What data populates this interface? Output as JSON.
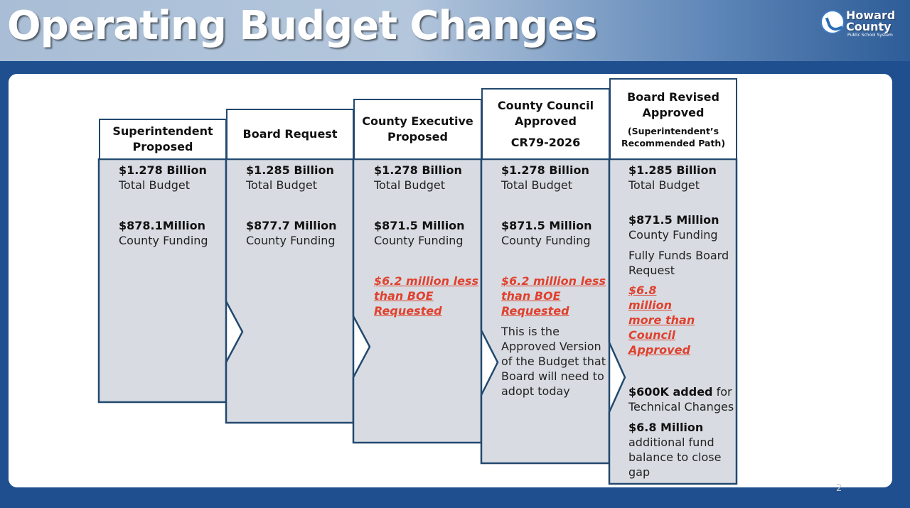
{
  "header": {
    "title": "Operating Budget Changes",
    "logo_line1": "Howard",
    "logo_line2": "County",
    "logo_line3": "Public School System"
  },
  "columns": [
    {
      "title": "Superintendent Proposed",
      "total": "$1.278 Billion",
      "total_label": "Total Budget",
      "county": "$878.1Million",
      "county_label": "County Funding"
    },
    {
      "title": "Board Request",
      "total": "$1.285 Billion",
      "total_label": "Total Budget",
      "county": "$877.7 Million",
      "county_label": "County Funding"
    },
    {
      "title": "County Executive Proposed",
      "total": "$1.278 Billion",
      "total_label": "Total Budget",
      "county": "$871.5 Million",
      "county_label": "County Funding",
      "note": "$6.2 million less than BOE Requested"
    },
    {
      "title": "County Council Approved",
      "code": "CR79-2026",
      "total": "$1.278 Billion",
      "total_label": "Total Budget",
      "county": "$871.5 Million",
      "county_label": "County Funding",
      "note": "$6.2 million less than BOE Requested",
      "extra": "This is the Approved Version of the Budget that Board will need to adopt today"
    },
    {
      "title": "Board Revised Approved",
      "subtitle": "(Superintendent’s Recommended Path)",
      "total": "$1.285 Billion",
      "total_label": "Total Budget",
      "county": "$871.5 Million",
      "county_label": "County Funding",
      "funds": "Fully Funds Board Request",
      "note": "$6.8 million more than Council Approved",
      "tech_bold": "$600K added",
      "tech_rest": " for Technical Changes",
      "fund_bold": "$6.8 Million",
      "fund_rest": "additional fund balance to close gap"
    }
  ],
  "page_number": "2",
  "colors": {
    "border": "#22496f",
    "fill": "#d8dce2",
    "red": "#e0412e",
    "background": "#1f4f8f"
  }
}
